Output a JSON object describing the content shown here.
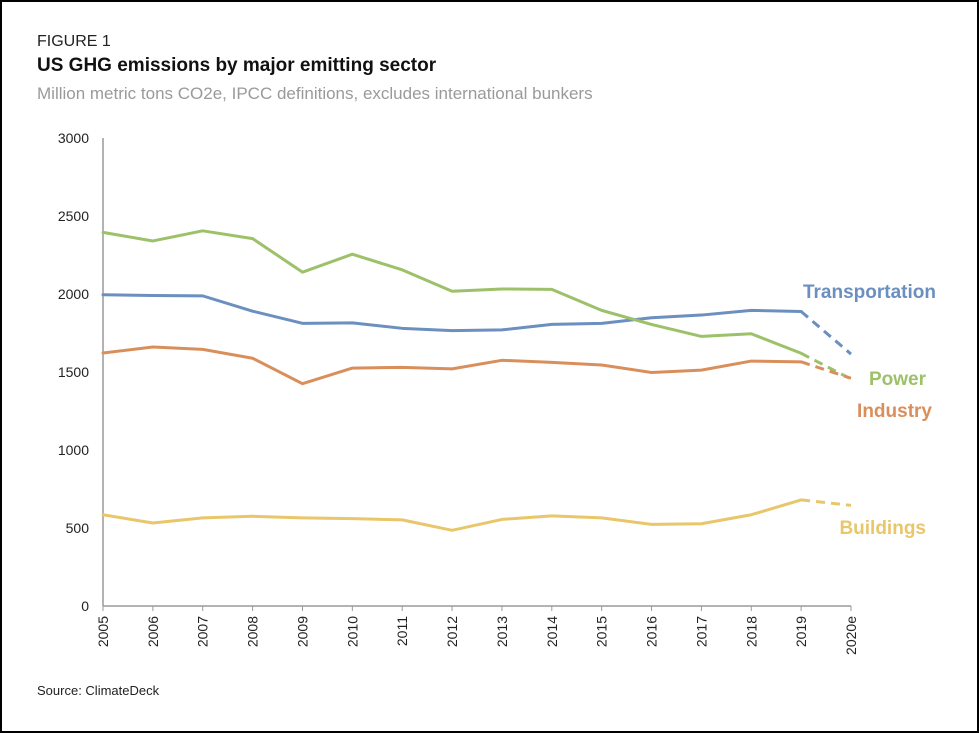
{
  "figure_label": "FIGURE 1",
  "source": "Source: ClimateDeck",
  "chart_data": {
    "type": "line",
    "title": "US GHG emissions by major emitting sector",
    "subtitle": "Million metric tons CO2e, IPCC definitions, excludes international bunkers",
    "xlabel": "",
    "ylabel": "",
    "x": [
      "2005",
      "2006",
      "2007",
      "2008",
      "2009",
      "2010",
      "2011",
      "2012",
      "2013",
      "2014",
      "2015",
      "2016",
      "2017",
      "2018",
      "2019",
      "2020e"
    ],
    "ylim": [
      0,
      3000
    ],
    "yticks": [
      "0",
      "500",
      "1000",
      "1500",
      "2000",
      "2500",
      "3000"
    ],
    "grid": false,
    "legend": "direct labels at line ends",
    "projected_from": "2019",
    "series": [
      {
        "name": "Transportation",
        "color": "#6b8fbf",
        "values": [
          1995,
          1990,
          1988,
          1890,
          1812,
          1815,
          1780,
          1765,
          1770,
          1805,
          1812,
          1848,
          1865,
          1895,
          1888,
          1615
        ]
      },
      {
        "name": "Power",
        "color": "#9cc169",
        "values": [
          2395,
          2340,
          2405,
          2355,
          2140,
          2255,
          2155,
          2018,
          2032,
          2030,
          1895,
          1805,
          1728,
          1745,
          1620,
          1455
        ]
      },
      {
        "name": "Industry",
        "color": "#d98f5b",
        "values": [
          1622,
          1660,
          1645,
          1588,
          1425,
          1525,
          1530,
          1520,
          1575,
          1562,
          1545,
          1497,
          1512,
          1570,
          1565,
          1460
        ]
      },
      {
        "name": "Buildings",
        "color": "#e8c669",
        "values": [
          585,
          532,
          565,
          575,
          565,
          560,
          552,
          485,
          555,
          578,
          565,
          523,
          527,
          585,
          680,
          645
        ]
      }
    ]
  }
}
